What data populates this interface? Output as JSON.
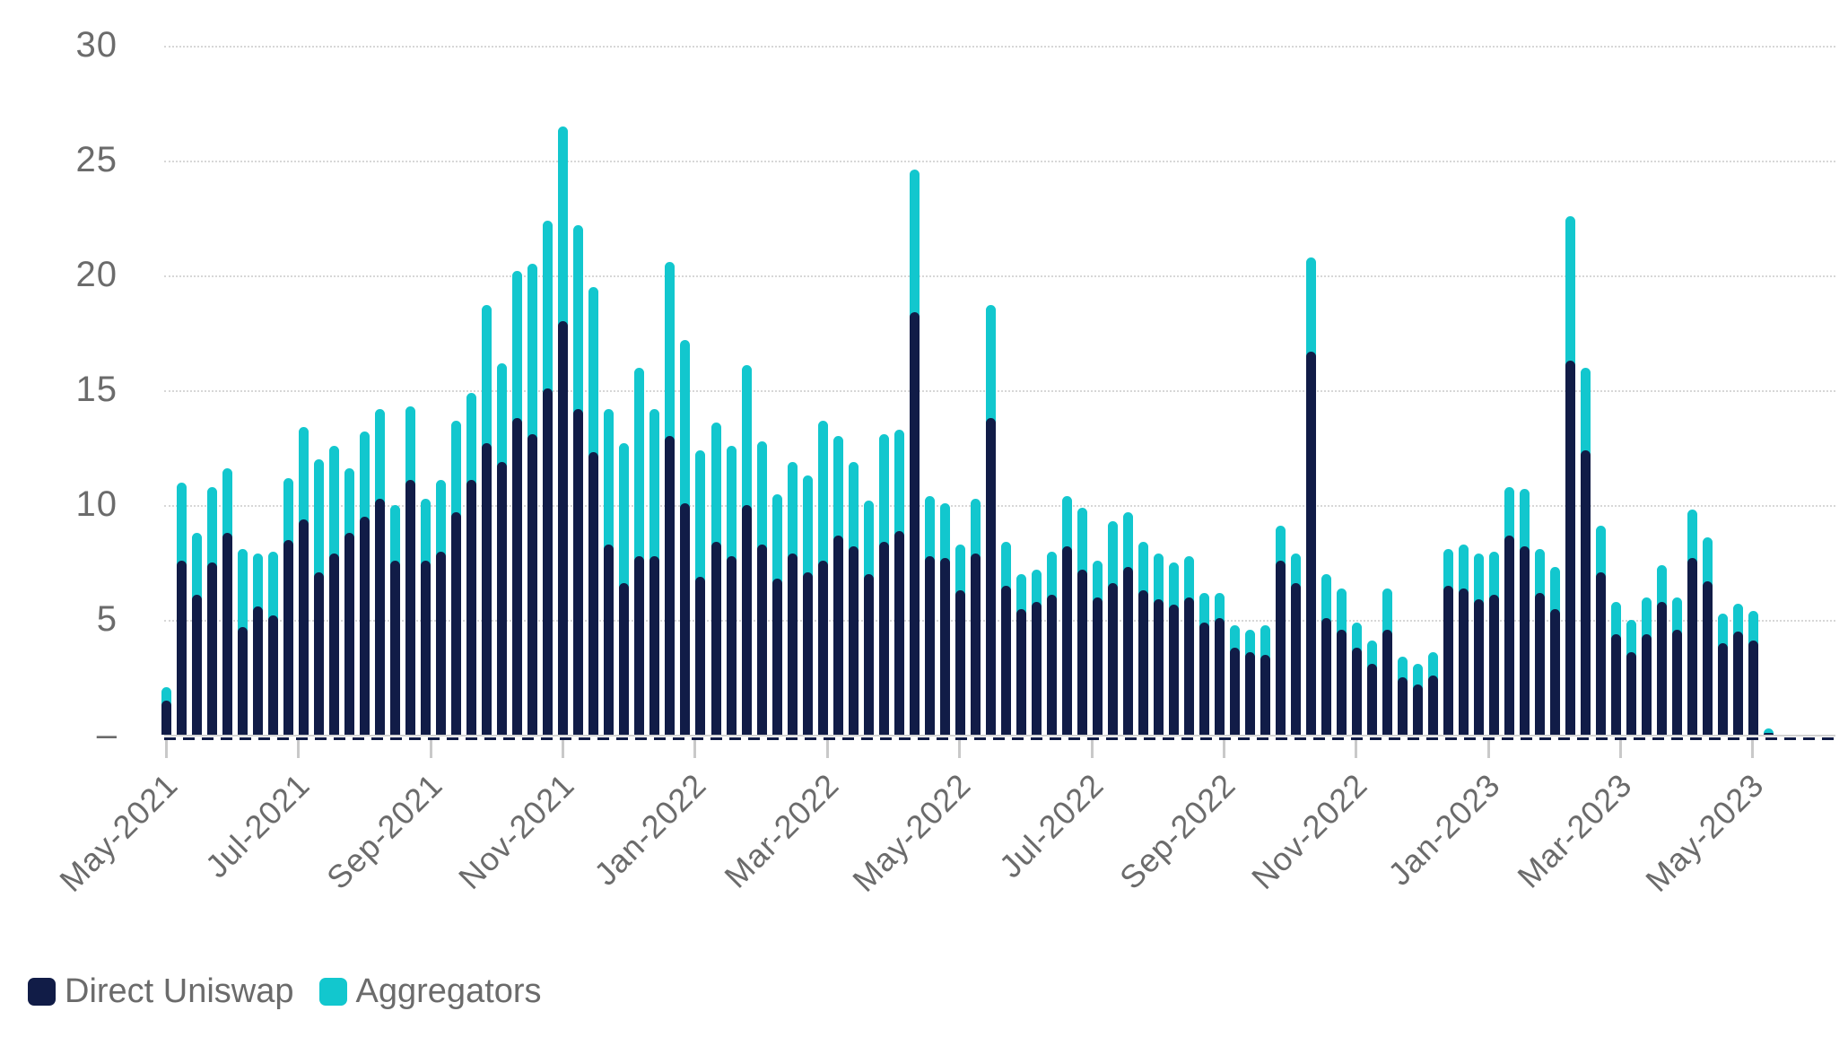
{
  "chart_data": {
    "type": "bar",
    "stacked": true,
    "title": "",
    "xlabel": "",
    "ylabel": "",
    "ylim": [
      0,
      30
    ],
    "grid": "horizontal-dotted",
    "legend_position": "bottom-left",
    "y_ticks": [
      {
        "value": 30,
        "label": "30"
      },
      {
        "value": 25,
        "label": "25"
      },
      {
        "value": 20,
        "label": "20"
      },
      {
        "value": 15,
        "label": "15"
      },
      {
        "value": 10,
        "label": "10"
      },
      {
        "value": 5,
        "label": "5"
      },
      {
        "value": 0,
        "label": "–"
      }
    ],
    "x_tick_labels": [
      "May-2021",
      "Jul-2021",
      "Sep-2021",
      "Nov-2021",
      "Jan-2022",
      "Mar-2022",
      "May-2022",
      "Jul-2022",
      "Sep-2022",
      "Nov-2022",
      "Jan-2023",
      "Mar-2023",
      "May-2023"
    ],
    "x": [
      "2021-05-01",
      "2021-05-08",
      "2021-05-15",
      "2021-05-22",
      "2021-05-29",
      "2021-06-05",
      "2021-06-12",
      "2021-06-19",
      "2021-06-26",
      "2021-07-03",
      "2021-07-10",
      "2021-07-17",
      "2021-07-24",
      "2021-07-31",
      "2021-08-07",
      "2021-08-14",
      "2021-08-21",
      "2021-08-28",
      "2021-09-04",
      "2021-09-11",
      "2021-09-18",
      "2021-09-25",
      "2021-10-02",
      "2021-10-09",
      "2021-10-16",
      "2021-10-23",
      "2021-10-30",
      "2021-11-06",
      "2021-11-13",
      "2021-11-20",
      "2021-11-27",
      "2021-12-04",
      "2021-12-11",
      "2021-12-18",
      "2021-12-25",
      "2022-01-01",
      "2022-01-08",
      "2022-01-15",
      "2022-01-22",
      "2022-01-29",
      "2022-02-05",
      "2022-02-12",
      "2022-02-19",
      "2022-02-26",
      "2022-03-05",
      "2022-03-12",
      "2022-03-19",
      "2022-03-26",
      "2022-04-02",
      "2022-04-09",
      "2022-04-16",
      "2022-04-23",
      "2022-04-30",
      "2022-05-07",
      "2022-05-14",
      "2022-05-21",
      "2022-05-28",
      "2022-06-04",
      "2022-06-11",
      "2022-06-18",
      "2022-06-25",
      "2022-07-02",
      "2022-07-09",
      "2022-07-16",
      "2022-07-23",
      "2022-07-30",
      "2022-08-06",
      "2022-08-13",
      "2022-08-20",
      "2022-08-27",
      "2022-09-03",
      "2022-09-10",
      "2022-09-17",
      "2022-09-24",
      "2022-10-01",
      "2022-10-08",
      "2022-10-15",
      "2022-10-22",
      "2022-10-29",
      "2022-11-05",
      "2022-11-12",
      "2022-11-19",
      "2022-11-26",
      "2022-12-03",
      "2022-12-10",
      "2022-12-17",
      "2022-12-24",
      "2022-12-31",
      "2023-01-07",
      "2023-01-14",
      "2023-01-21",
      "2023-01-28",
      "2023-02-04",
      "2023-02-11",
      "2023-02-18",
      "2023-02-25",
      "2023-03-04",
      "2023-03-11",
      "2023-03-18",
      "2023-03-25",
      "2023-04-01",
      "2023-04-08",
      "2023-04-15",
      "2023-04-22",
      "2023-04-29",
      "2023-05-06"
    ],
    "series": [
      {
        "name": "Direct Uniswap",
        "color": "#111C47",
        "values": [
          1.5,
          7.6,
          6.1,
          7.5,
          8.8,
          4.7,
          5.6,
          5.2,
          8.5,
          9.4,
          7.1,
          7.9,
          8.8,
          9.5,
          10.3,
          7.6,
          11.1,
          7.6,
          8.0,
          9.7,
          11.1,
          12.7,
          11.9,
          13.8,
          13.1,
          15.1,
          18.0,
          14.2,
          12.3,
          8.3,
          6.6,
          7.8,
          7.8,
          13.0,
          10.1,
          6.9,
          8.4,
          7.8,
          10.0,
          8.3,
          6.8,
          7.9,
          7.1,
          7.6,
          8.7,
          8.2,
          7.0,
          8.4,
          8.9,
          18.4,
          7.8,
          7.7,
          6.3,
          7.9,
          13.8,
          6.5,
          5.5,
          5.8,
          6.1,
          8.2,
          7.2,
          6.0,
          6.6,
          7.3,
          6.3,
          5.9,
          5.7,
          6.0,
          4.9,
          5.1,
          3.8,
          3.6,
          3.5,
          7.6,
          6.6,
          16.7,
          5.1,
          4.6,
          3.8,
          3.1,
          4.6,
          2.5,
          2.2,
          2.6,
          6.5,
          6.4,
          5.9,
          6.1,
          8.7,
          8.2,
          6.2,
          5.5,
          16.3,
          12.4,
          7.1,
          4.4,
          3.6,
          4.4,
          5.8,
          4.6,
          7.7,
          6.7,
          4.0,
          4.5,
          4.1,
          0.1
        ]
      },
      {
        "name": "Aggregators",
        "color": "#12C7CE",
        "values": [
          0.6,
          3.4,
          2.7,
          3.3,
          2.8,
          3.4,
          2.3,
          2.8,
          2.7,
          4.0,
          4.9,
          4.7,
          2.8,
          3.7,
          3.9,
          2.4,
          3.2,
          2.7,
          3.1,
          4.0,
          3.8,
          6.0,
          4.3,
          6.4,
          7.4,
          7.3,
          8.5,
          8.0,
          7.2,
          5.9,
          6.1,
          8.2,
          6.4,
          7.6,
          7.1,
          5.5,
          5.2,
          4.8,
          6.1,
          4.5,
          3.7,
          4.0,
          4.2,
          6.1,
          4.3,
          3.7,
          3.2,
          4.7,
          4.4,
          6.2,
          2.6,
          2.4,
          2.0,
          2.4,
          4.9,
          1.9,
          1.5,
          1.4,
          1.9,
          2.2,
          2.7,
          1.6,
          2.7,
          2.4,
          2.1,
          2.0,
          1.8,
          1.8,
          1.3,
          1.1,
          1.0,
          1.0,
          1.3,
          1.5,
          1.3,
          4.1,
          1.9,
          1.8,
          1.1,
          1.0,
          1.8,
          0.9,
          0.9,
          1.0,
          1.6,
          1.9,
          2.0,
          1.9,
          2.1,
          2.5,
          1.9,
          1.8,
          6.3,
          3.6,
          2.0,
          1.4,
          1.4,
          1.6,
          1.6,
          1.4,
          2.1,
          1.9,
          1.3,
          1.2,
          1.3,
          0.2
        ]
      }
    ]
  },
  "legend": {
    "items": [
      {
        "label": "Direct Uniswap",
        "color": "#111C47"
      },
      {
        "label": "Aggregators",
        "color": "#12C7CE"
      }
    ]
  },
  "colors": {
    "background": "#ffffff",
    "gridline": "#d7d7d7",
    "axis_text": "#6b6b6b",
    "tick": "#c9c9c9",
    "baseline_dash": "#111C47"
  }
}
